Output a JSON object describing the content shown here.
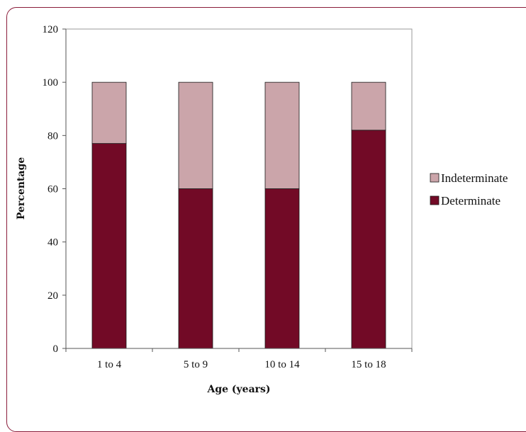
{
  "chart_data": {
    "type": "bar",
    "stacked": true,
    "categories": [
      "1 to 4",
      "5 to 9",
      "10 to 14",
      "15 to 18"
    ],
    "series": [
      {
        "name": "Determinate",
        "values": [
          77,
          60,
          60,
          82
        ],
        "color": "#720a26"
      },
      {
        "name": "Indeterminate",
        "values": [
          23,
          40,
          40,
          18
        ],
        "color": "#cba5aa"
      }
    ],
    "xlabel": "Age (years)",
    "ylabel": "Percentage",
    "ylim": [
      0,
      120
    ],
    "yticks": [
      0,
      20,
      40,
      60,
      80,
      100,
      120
    ],
    "grid": false,
    "legend": "right",
    "legend_order": [
      "Indeterminate",
      "Determinate"
    ]
  }
}
